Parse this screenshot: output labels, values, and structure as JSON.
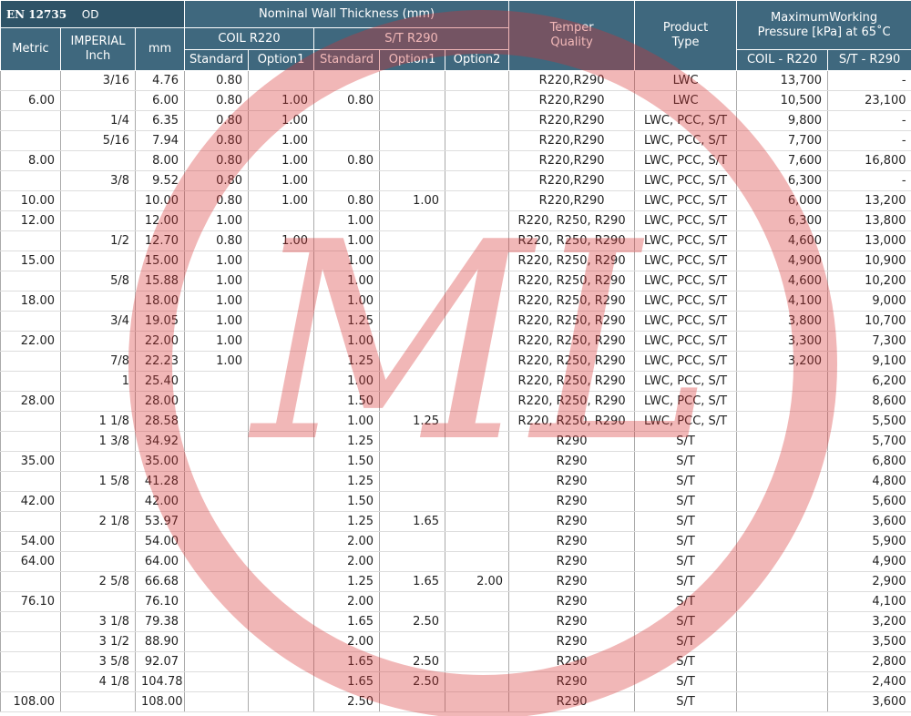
{
  "header": {
    "standard": "EN 12735",
    "od": "OD",
    "nominal": "Nominal Wall Thickness (mm)",
    "metric": "Metric",
    "imperial": "IMPERIAL\nInch",
    "mm": "mm",
    "coil": "COIL R220",
    "st": "S/T R290",
    "coil_standard": "Standard",
    "coil_option1": "Option1",
    "st_standard": "Standard",
    "st_option1": "Option1",
    "st_option2": "Option2",
    "temper": "Temper\nQuality",
    "product": "Product\nType",
    "pressure": "MaximumWorking\nPressure [kPa] at 65˚C",
    "pressure_coil": "COIL - R220",
    "pressure_st": "S/T - R290"
  },
  "watermark": "ML",
  "table": {
    "rows": [
      [
        null,
        "3/16",
        "4.76",
        "0.80",
        null,
        null,
        null,
        null,
        "R220,R290",
        "LWC",
        "13,700",
        "-"
      ],
      [
        "6.00",
        null,
        "6.00",
        "0.80",
        "1.00",
        "0.80",
        null,
        null,
        "R220,R290",
        "LWC",
        "10,500",
        "23,100"
      ],
      [
        null,
        "1/4",
        "6.35",
        "0.80",
        "1.00",
        null,
        null,
        null,
        "R220,R290",
        "LWC, PCC, S/T",
        "9,800",
        "-"
      ],
      [
        null,
        "5/16",
        "7.94",
        "0.80",
        "1.00",
        null,
        null,
        null,
        "R220,R290",
        "LWC, PCC, S/T",
        "7,700",
        "-"
      ],
      [
        "8.00",
        null,
        "8.00",
        "0.80",
        "1.00",
        "0.80",
        null,
        null,
        "R220,R290",
        "LWC, PCC, S/T",
        "7,600",
        "16,800"
      ],
      [
        null,
        "3/8",
        "9.52",
        "0.80",
        "1.00",
        null,
        null,
        null,
        "R220,R290",
        "LWC, PCC, S/T",
        "6,300",
        "-"
      ],
      [
        "10.00",
        null,
        "10.00",
        "0.80",
        "1.00",
        "0.80",
        "1.00",
        null,
        "R220,R290",
        "LWC, PCC, S/T",
        "6,000",
        "13,200"
      ],
      [
        "12.00",
        null,
        "12.00",
        "1.00",
        null,
        "1.00",
        null,
        null,
        "R220, R250, R290",
        "LWC, PCC, S/T",
        "6,300",
        "13,800"
      ],
      [
        null,
        "1/2",
        "12.70",
        "0.80",
        "1.00",
        "1.00",
        null,
        null,
        "R220, R250, R290",
        "LWC, PCC, S/T",
        "4,600",
        "13,000"
      ],
      [
        "15.00",
        null,
        "15.00",
        "1.00",
        null,
        "1.00",
        null,
        null,
        "R220, R250, R290",
        "LWC, PCC, S/T",
        "4,900",
        "10,900"
      ],
      [
        null,
        "5/8",
        "15.88",
        "1.00",
        null,
        "1.00",
        null,
        null,
        "R220, R250, R290",
        "LWC, PCC, S/T",
        "4,600",
        "10,200"
      ],
      [
        "18.00",
        null,
        "18.00",
        "1.00",
        null,
        "1.00",
        null,
        null,
        "R220, R250, R290",
        "LWC, PCC, S/T",
        "4,100",
        "9,000"
      ],
      [
        null,
        "3/4",
        "19.05",
        "1.00",
        null,
        "1.25",
        null,
        null,
        "R220, R250, R290",
        "LWC, PCC, S/T",
        "3,800",
        "10,700"
      ],
      [
        "22.00",
        null,
        "22.00",
        "1.00",
        null,
        "1.00",
        null,
        null,
        "R220, R250, R290",
        "LWC, PCC, S/T",
        "3,300",
        "7,300"
      ],
      [
        null,
        "7/8",
        "22.23",
        "1.00",
        null,
        "1.25",
        null,
        null,
        "R220, R250, R290",
        "LWC, PCC, S/T",
        "3,200",
        "9,100"
      ],
      [
        null,
        "1",
        "25.40",
        null,
        null,
        "1.00",
        null,
        null,
        "R220, R250, R290",
        "LWC, PCC, S/T",
        null,
        "6,200"
      ],
      [
        "28.00",
        null,
        "28.00",
        null,
        null,
        "1.50",
        null,
        null,
        "R220, R250, R290",
        "LWC, PCC, S/T",
        null,
        "8,600"
      ],
      [
        null,
        "1 1/8",
        "28.58",
        null,
        null,
        "1.00",
        "1.25",
        null,
        "R220, R250, R290",
        "LWC, PCC, S/T",
        null,
        "5,500"
      ],
      [
        null,
        "1 3/8",
        "34.92",
        null,
        null,
        "1.25",
        null,
        null,
        "R290",
        "S/T",
        null,
        "5,700"
      ],
      [
        "35.00",
        null,
        "35.00",
        null,
        null,
        "1.50",
        null,
        null,
        "R290",
        "S/T",
        null,
        "6,800"
      ],
      [
        null,
        "1 5/8",
        "41.28",
        null,
        null,
        "1.25",
        null,
        null,
        "R290",
        "S/T",
        null,
        "4,800"
      ],
      [
        "42.00",
        null,
        "42.00",
        null,
        null,
        "1.50",
        null,
        null,
        "R290",
        "S/T",
        null,
        "5,600"
      ],
      [
        null,
        "2 1/8",
        "53.97",
        null,
        null,
        "1.25",
        "1.65",
        null,
        "R290",
        "S/T",
        null,
        "3,600"
      ],
      [
        "54.00",
        null,
        "54.00",
        null,
        null,
        "2.00",
        null,
        null,
        "R290",
        "S/T",
        null,
        "5,900"
      ],
      [
        "64.00",
        null,
        "64.00",
        null,
        null,
        "2.00",
        null,
        null,
        "R290",
        "S/T",
        null,
        "4,900"
      ],
      [
        null,
        "2 5/8",
        "66.68",
        null,
        null,
        "1.25",
        "1.65",
        "2.00",
        "R290",
        "S/T",
        null,
        "2,900"
      ],
      [
        "76.10",
        null,
        "76.10",
        null,
        null,
        "2.00",
        null,
        null,
        "R290",
        "S/T",
        null,
        "4,100"
      ],
      [
        null,
        "3 1/8",
        "79.38",
        null,
        null,
        "1.65",
        "2.50",
        null,
        "R290",
        "S/T",
        null,
        "3,200"
      ],
      [
        null,
        "3 1/2",
        "88.90",
        null,
        null,
        "2.00",
        null,
        null,
        "R290",
        "S/T",
        null,
        "3,500"
      ],
      [
        null,
        "3 5/8",
        "92.07",
        null,
        null,
        "1.65",
        "2.50",
        null,
        "R290",
        "S/T",
        null,
        "2,800"
      ],
      [
        null,
        "4 1/8",
        "104.78",
        null,
        null,
        "1.65",
        "2.50",
        null,
        "R290",
        "S/T",
        null,
        "2,400"
      ],
      [
        "108.00",
        null,
        "108.00",
        null,
        null,
        "2.50",
        null,
        null,
        "R290",
        "S/T",
        null,
        "3,600"
      ]
    ]
  }
}
